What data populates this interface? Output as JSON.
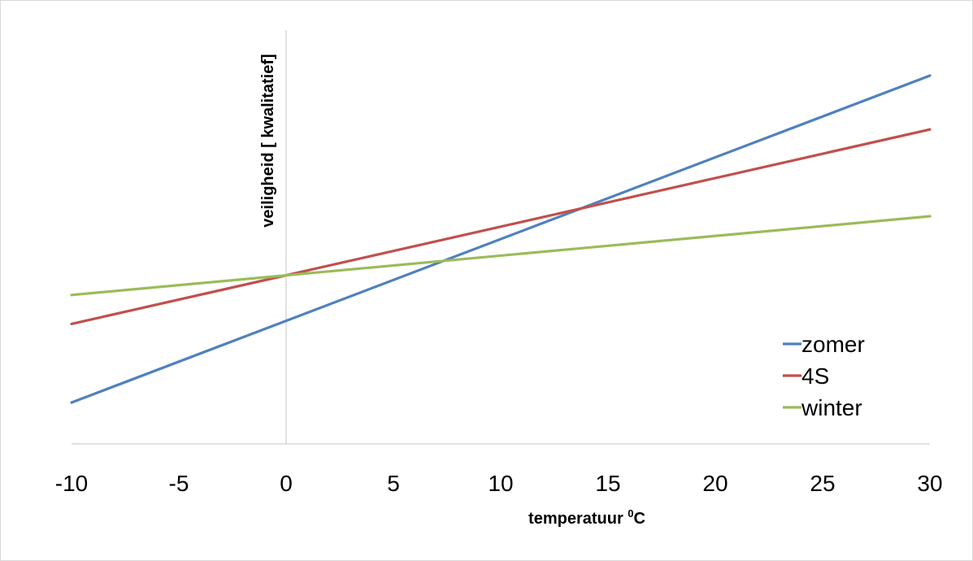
{
  "chart_data": {
    "type": "line",
    "title": "",
    "xlabel": "temperatuur ",
    "xlabel_sup": "0",
    "xlabel_unit": "C",
    "ylabel": "veiligheid [ kwalitatief]",
    "xlim": [
      -10,
      30
    ],
    "ylim": [
      0,
      10
    ],
    "x_ticks": [
      "-10",
      "-5",
      "0",
      "5",
      "10",
      "15",
      "20",
      "25",
      "30"
    ],
    "x_tick_values": [
      -10,
      -5,
      0,
      5,
      10,
      15,
      20,
      25,
      30
    ],
    "grid": false,
    "legend_position": "bottom-right",
    "series": [
      {
        "name": "zomer",
        "color": "#4f81bd",
        "x": [
          -10,
          30
        ],
        "y": [
          1.0,
          8.9
        ]
      },
      {
        "name": "4S",
        "color": "#c0504d",
        "x": [
          -10,
          30
        ],
        "y": [
          2.9,
          7.6
        ]
      },
      {
        "name": "winter",
        "color": "#9bbb59",
        "x": [
          -10,
          30
        ],
        "y": [
          3.6,
          5.5
        ]
      }
    ]
  }
}
